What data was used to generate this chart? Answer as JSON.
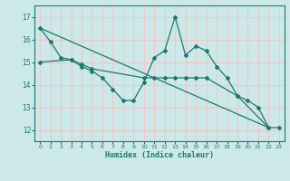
{
  "xlabel": "Humidex (Indice chaleur)",
  "ylabel": "",
  "background_color": "#cce8e8",
  "grid_color": "#f0c8c8",
  "line_color": "#1a7a6e",
  "x_values": [
    0,
    1,
    2,
    3,
    4,
    5,
    6,
    7,
    8,
    9,
    10,
    11,
    12,
    13,
    14,
    15,
    16,
    17,
    18,
    19,
    20,
    21,
    22,
    23
  ],
  "line1": [
    16.5,
    15.9,
    15.2,
    15.1,
    14.8,
    14.6,
    14.3,
    13.8,
    13.3,
    13.3,
    14.1,
    15.2,
    15.5,
    17.0,
    15.3,
    15.7,
    15.5,
    14.8,
    14.3,
    13.5,
    13.3,
    13.0,
    12.1,
    12.1
  ],
  "line2_x": [
    0,
    3,
    4,
    5,
    10,
    11,
    12,
    13,
    14,
    15,
    16,
    19,
    22
  ],
  "line2_y": [
    15.0,
    15.1,
    14.9,
    14.7,
    14.3,
    14.3,
    14.3,
    14.3,
    14.3,
    14.3,
    14.3,
    13.5,
    12.1
  ],
  "line3_x": [
    0,
    22
  ],
  "line3_y": [
    16.5,
    12.1
  ],
  "ylim": [
    11.5,
    17.5
  ],
  "xlim": [
    -0.5,
    23.5
  ],
  "yticks": [
    12,
    13,
    14,
    15,
    16,
    17
  ],
  "xticks": [
    0,
    1,
    2,
    3,
    4,
    5,
    6,
    7,
    8,
    9,
    10,
    11,
    12,
    13,
    14,
    15,
    16,
    17,
    18,
    19,
    20,
    21,
    22,
    23
  ]
}
